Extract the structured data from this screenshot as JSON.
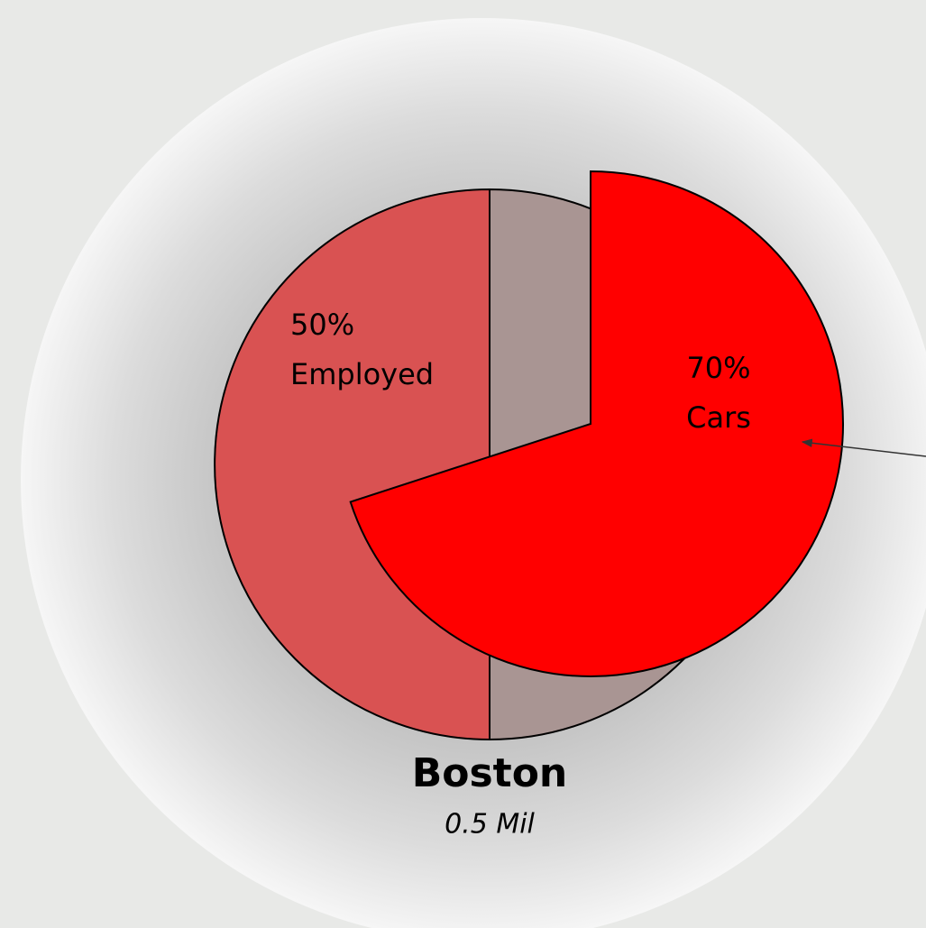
{
  "chart_data": {
    "type": "pie",
    "title": "Boston",
    "subtitle": "0.5 Mil",
    "pies": [
      {
        "categories": [
          "Employed",
          null
        ],
        "values": [
          50,
          50
        ],
        "value_labels": [
          "50%",
          null
        ],
        "colors": [
          "#a99593",
          "#d95252"
        ]
      },
      {
        "categories": [
          "Cars",
          null
        ],
        "values": [
          70,
          30
        ],
        "value_labels": [
          "70%",
          null
        ],
        "colors": [
          "#ff0000",
          null
        ]
      }
    ]
  }
}
